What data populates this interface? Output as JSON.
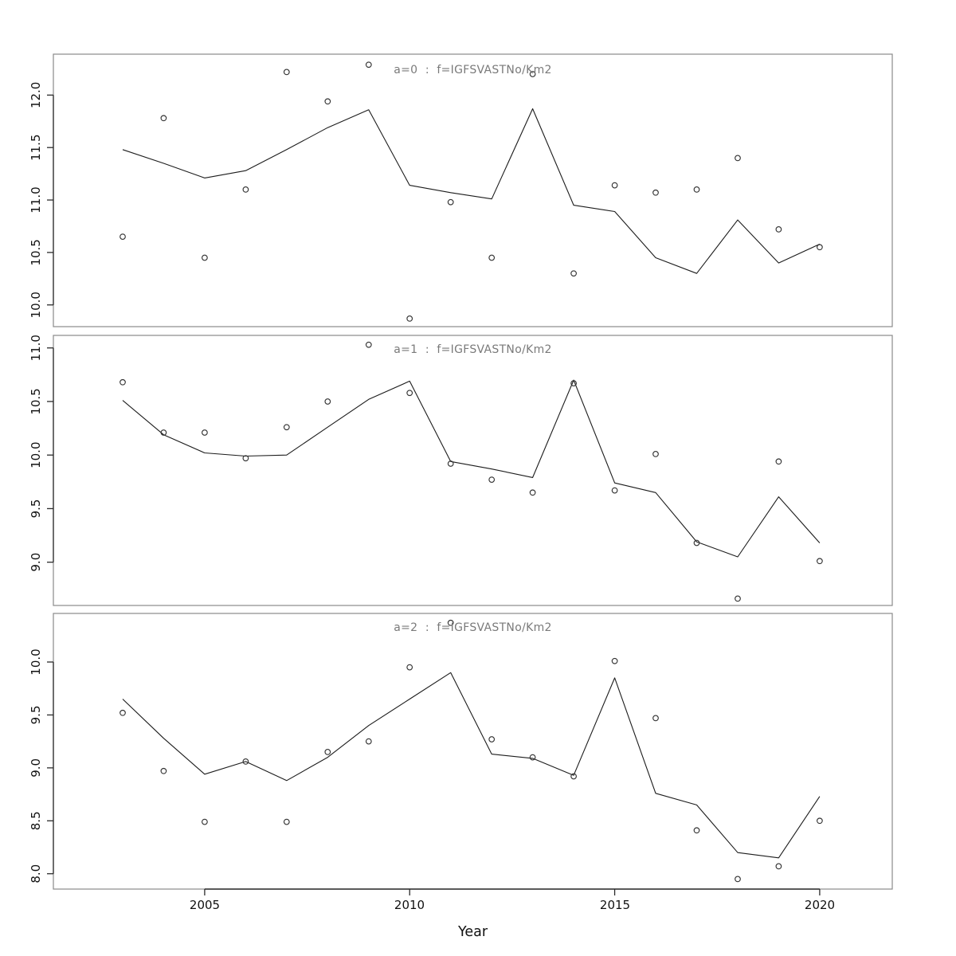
{
  "figure": {
    "xlabel": "Year"
  },
  "colors": {
    "panel_border": "#8a8a8a",
    "axis_spine": "#2b2b2b",
    "tick_mark": "#2b2b2b",
    "tick_label": "#111111",
    "data_line": "#1c1c1c",
    "point_stroke": "#333333",
    "title_text": "#7a7a7a",
    "background": "#ffffff"
  },
  "chart_data": [
    {
      "type": "line",
      "title": "a=0  :  f=IGFSVASTNo/Km2",
      "xlabel": "Year",
      "ylabel": "",
      "x": [
        2003,
        2004,
        2005,
        2006,
        2007,
        2008,
        2009,
        2010,
        2011,
        2012,
        2013,
        2014,
        2015,
        2016,
        2017,
        2018,
        2019,
        2020
      ],
      "series": [
        {
          "name": "observed points",
          "style": "points",
          "values": [
            10.65,
            11.78,
            10.45,
            11.1,
            12.22,
            11.94,
            12.29,
            9.87,
            10.98,
            10.45,
            12.2,
            10.3,
            11.14,
            11.07,
            11.1,
            11.4,
            10.72,
            10.55
          ]
        },
        {
          "name": "fitted line",
          "style": "line",
          "values": [
            11.48,
            11.35,
            11.21,
            11.28,
            11.48,
            11.69,
            11.86,
            11.14,
            11.07,
            11.01,
            11.87,
            10.95,
            10.89,
            10.45,
            10.3,
            10.81,
            10.4,
            10.58
          ]
        }
      ],
      "xlim": [
        2001.31,
        2021.77
      ],
      "ylim": [
        9.793,
        12.39
      ],
      "x_ticks": [
        2005,
        2010,
        2015,
        2020
      ],
      "y_ticks": [
        10.0,
        10.5,
        11.0,
        11.5,
        12.0
      ],
      "grid": false,
      "legend": "none"
    },
    {
      "type": "line",
      "title": "a=1  :  f=IGFSVASTNo/Km2",
      "xlabel": "Year",
      "ylabel": "",
      "x": [
        2003,
        2004,
        2005,
        2006,
        2007,
        2008,
        2009,
        2010,
        2011,
        2012,
        2013,
        2014,
        2015,
        2016,
        2017,
        2018,
        2019,
        2020
      ],
      "series": [
        {
          "name": "observed points",
          "style": "points",
          "values": [
            10.68,
            10.21,
            10.21,
            9.97,
            10.26,
            10.5,
            11.03,
            10.58,
            9.92,
            9.77,
            9.65,
            10.67,
            9.67,
            10.01,
            9.18,
            8.66,
            9.94,
            9.01
          ]
        },
        {
          "name": "fitted line",
          "style": "line",
          "values": [
            10.51,
            10.19,
            10.02,
            9.99,
            10.0,
            10.26,
            10.52,
            10.69,
            9.94,
            9.87,
            9.79,
            10.7,
            9.74,
            9.65,
            9.19,
            9.05,
            9.61,
            9.18
          ]
        }
      ],
      "xlim": [
        2001.31,
        2021.77
      ],
      "ylim": [
        8.596,
        11.117
      ],
      "x_ticks": [
        2005,
        2010,
        2015,
        2020
      ],
      "y_ticks": [
        9.0,
        9.5,
        10.0,
        10.5,
        11.0
      ],
      "grid": false,
      "legend": "none"
    },
    {
      "type": "line",
      "title": "a=2  :  f=IGFSVASTNo/Km2",
      "xlabel": "Year",
      "ylabel": "",
      "x": [
        2003,
        2004,
        2005,
        2006,
        2007,
        2008,
        2009,
        2010,
        2011,
        2012,
        2013,
        2014,
        2015,
        2016,
        2017,
        2018,
        2019,
        2020
      ],
      "series": [
        {
          "name": "observed points",
          "style": "points",
          "values": [
            9.52,
            8.97,
            8.49,
            9.06,
            8.49,
            9.15,
            9.25,
            9.95,
            10.37,
            9.27,
            9.1,
            8.92,
            10.01,
            9.47,
            8.41,
            7.95,
            8.07,
            8.5
          ]
        },
        {
          "name": "fitted line",
          "style": "line",
          "values": [
            9.65,
            9.28,
            8.94,
            9.06,
            8.88,
            9.1,
            9.4,
            9.65,
            9.9,
            9.13,
            9.09,
            8.93,
            9.85,
            8.76,
            8.65,
            8.2,
            8.15,
            8.73
          ]
        }
      ],
      "xlim": [
        2001.31,
        2021.77
      ],
      "ylim": [
        7.855,
        10.459
      ],
      "x_ticks": [
        2005,
        2010,
        2015,
        2020
      ],
      "y_ticks": [
        8.0,
        8.5,
        9.0,
        9.5,
        10.0
      ],
      "grid": false,
      "legend": "none"
    }
  ]
}
